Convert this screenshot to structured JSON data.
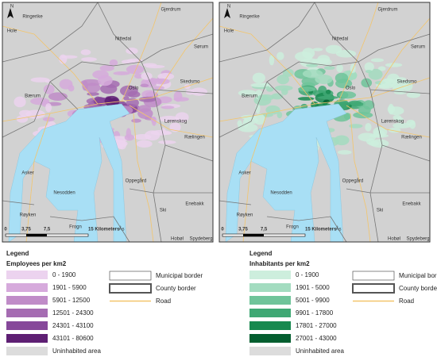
{
  "maps": [
    {
      "north": "N",
      "places": [
        "Ringerike",
        "Hole",
        "Gjerdrum",
        "Nittedal",
        "Sørum",
        "Skedsmo",
        "Oslo",
        "Bærum",
        "Lørenskog",
        "Rælingen",
        "Asker",
        "Nesodden",
        "Oppegård",
        "Enebakk",
        "Røyken",
        "Ski",
        "Frogn",
        "Ås",
        "Hobøl",
        "Spydeberg"
      ],
      "scale_labels": [
        "0",
        "3,75",
        "7,5",
        "15 Kilometers"
      ],
      "legend": {
        "title": "Legend",
        "subtitle": "Employees per km2",
        "classes": [
          {
            "label": "0 - 1900",
            "color": "#ecd3ef"
          },
          {
            "label": "1901 - 5900",
            "color": "#d6aadc"
          },
          {
            "label": "5901 - 12500",
            "color": "#c08cc8"
          },
          {
            "label": "12501 - 24300",
            "color": "#a56cb2"
          },
          {
            "label": "24301 - 43100",
            "color": "#86489a"
          },
          {
            "label": "43101 - 80600",
            "color": "#5e1f73"
          },
          {
            "label": "Uninhabited area",
            "color": "#dcdcdc"
          }
        ],
        "borders": [
          "Municipal border",
          "County border",
          "Road"
        ]
      }
    },
    {
      "north": "N",
      "places": [
        "Ringerike",
        "Hole",
        "Gjerdrum",
        "Nittedal",
        "Sørum",
        "Skedsmo",
        "Oslo",
        "Bærum",
        "Lørenskog",
        "Rælingen",
        "Asker",
        "Nesodden",
        "Oppegård",
        "Enebakk",
        "Røyken",
        "Ski",
        "Frogn",
        "Ås",
        "Hobøl",
        "Spydeberg"
      ],
      "scale_labels": [
        "0",
        "3,75",
        "7,5",
        "15 Kilometers"
      ],
      "legend": {
        "title": "Legend",
        "subtitle": "Inhabitants per km2",
        "classes": [
          {
            "label": "0 - 1900",
            "color": "#cdeedd"
          },
          {
            "label": "1901 - 5000",
            "color": "#a3dcc0"
          },
          {
            "label": "5001 - 9900",
            "color": "#6fc49a"
          },
          {
            "label": "9901 - 17800",
            "color": "#3fa874"
          },
          {
            "label": "17801 - 27000",
            "color": "#17894f"
          },
          {
            "label": "27001 - 43000",
            "color": "#035e2f"
          },
          {
            "label": "Uninhabited area",
            "color": "#dcdcdc"
          }
        ],
        "borders": [
          "Municipal border",
          "County border",
          "Road"
        ]
      }
    }
  ]
}
